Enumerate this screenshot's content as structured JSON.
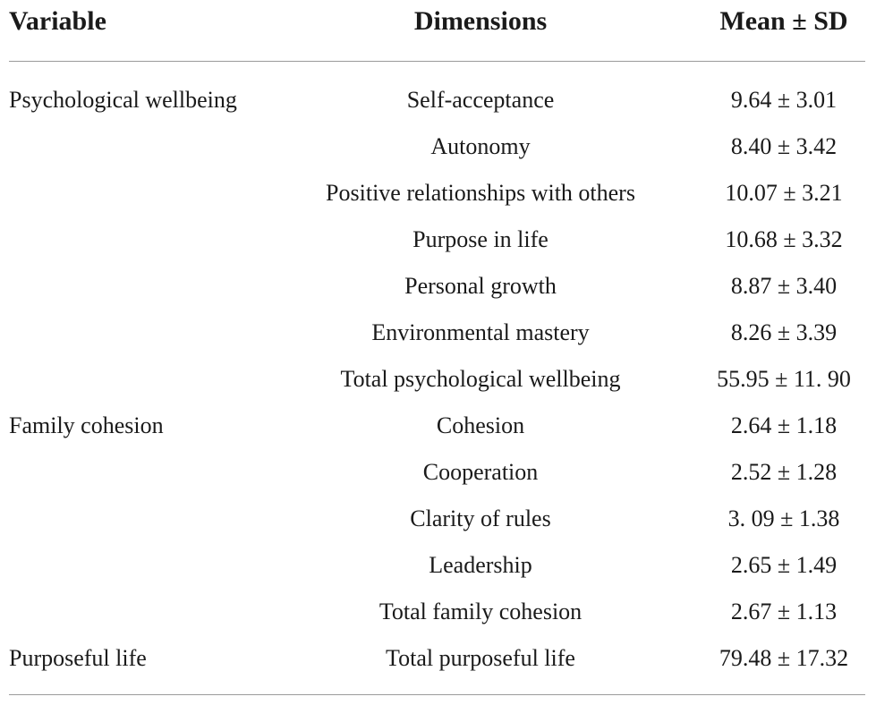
{
  "table": {
    "headers": {
      "variable": "Variable",
      "dimensions": "Dimensions",
      "mean_sd": "Mean ± SD"
    },
    "rows": [
      {
        "variable": "Psychological wellbeing",
        "dimension": "Self-acceptance",
        "mean_sd": "9.64 ± 3.01"
      },
      {
        "variable": "",
        "dimension": "Autonomy",
        "mean_sd": "8.40 ± 3.42"
      },
      {
        "variable": "",
        "dimension": "Positive relationships with others",
        "mean_sd": "10.07 ± 3.21"
      },
      {
        "variable": "",
        "dimension": "Purpose in life",
        "mean_sd": "10.68 ± 3.32"
      },
      {
        "variable": "",
        "dimension": "Personal growth",
        "mean_sd": "8.87 ± 3.40"
      },
      {
        "variable": "",
        "dimension": "Environmental mastery",
        "mean_sd": "8.26 ± 3.39"
      },
      {
        "variable": "",
        "dimension": "Total psychological wellbeing",
        "mean_sd": "55.95 ± 11. 90"
      },
      {
        "variable": "Family cohesion",
        "dimension": "Cohesion",
        "mean_sd": "2.64 ± 1.18"
      },
      {
        "variable": "",
        "dimension": "Cooperation",
        "mean_sd": "2.52 ± 1.28"
      },
      {
        "variable": "",
        "dimension": "Clarity of rules",
        "mean_sd": "3. 09 ± 1.38"
      },
      {
        "variable": "",
        "dimension": "Leadership",
        "mean_sd": "2.65 ± 1.49"
      },
      {
        "variable": "",
        "dimension": "Total family cohesion",
        "mean_sd": "2.67 ± 1.13"
      },
      {
        "variable": "Purposeful life",
        "dimension": "Total purposeful life",
        "mean_sd": "79.48 ± 17.32"
      }
    ]
  }
}
